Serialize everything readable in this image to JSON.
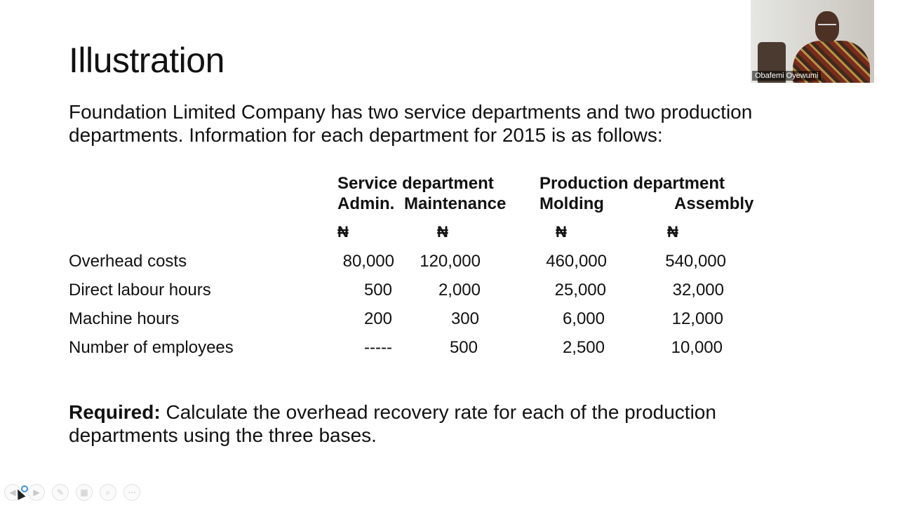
{
  "slide": {
    "title": "Illustration",
    "intro": "Foundation Limited Company has two service departments and two production departments. Information for each department for 2015 is as follows:",
    "headers": {
      "service_group": "Service department",
      "production_group": "Production department",
      "admin": "Admin.",
      "maintenance": "Maintenance",
      "molding": "Molding",
      "assembly": "Assembly"
    },
    "currency": [
      "₦",
      "₦",
      "₦",
      "₦"
    ],
    "rows": [
      {
        "label": "Overhead costs",
        "values": [
          "80,000",
          "120,000",
          "460,000",
          "540,000"
        ]
      },
      {
        "label": "Direct labour hours",
        "values": [
          "500",
          "2,000",
          "25,000",
          "32,000"
        ]
      },
      {
        "label": "Machine hours",
        "values": [
          "200",
          "300",
          "6,000",
          "12,000"
        ]
      },
      {
        "label": "Number of employees",
        "values": [
          "-----",
          "500",
          "2,500",
          "10,000"
        ]
      }
    ],
    "required_label": "Required:",
    "required_text": " Calculate the overhead recovery rate for each of the production departments using the three bases."
  },
  "video": {
    "participant_name": "Obafemi Oyewumi"
  },
  "toolbar": {
    "buttons": [
      "back-arrow-icon",
      "forward-arrow-icon",
      "pen-icon",
      "slides-icon",
      "zoom-icon",
      "more-icon"
    ]
  }
}
